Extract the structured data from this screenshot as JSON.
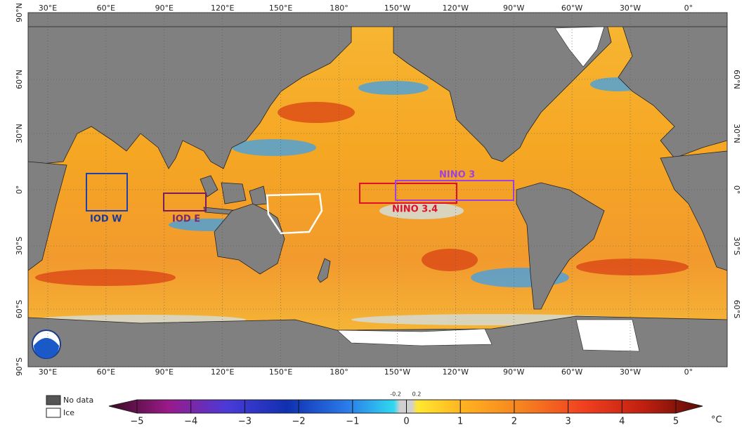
{
  "map": {
    "longitudes": [
      "30°E",
      "60°E",
      "90°E",
      "120°E",
      "150°E",
      "180°",
      "150°W",
      "120°W",
      "90°W",
      "60°W",
      "30°W",
      "0°"
    ],
    "latitudes": [
      "90°N",
      "60°N",
      "30°N",
      "0°",
      "30°S",
      "60°S",
      "90°S"
    ],
    "regions": [
      "IOD W",
      "IOD E",
      "NINO 3",
      "NINO 3.4"
    ]
  },
  "legend": {
    "no_data": "No data",
    "ice": "Ice"
  },
  "colorbar": {
    "ticks": [
      "−5",
      "−4",
      "−3",
      "−2",
      "−1",
      "0",
      "1",
      "2",
      "3",
      "4",
      "5"
    ],
    "small_ticks": [
      "-0.2",
      "0.2"
    ],
    "unit": "°C"
  }
}
